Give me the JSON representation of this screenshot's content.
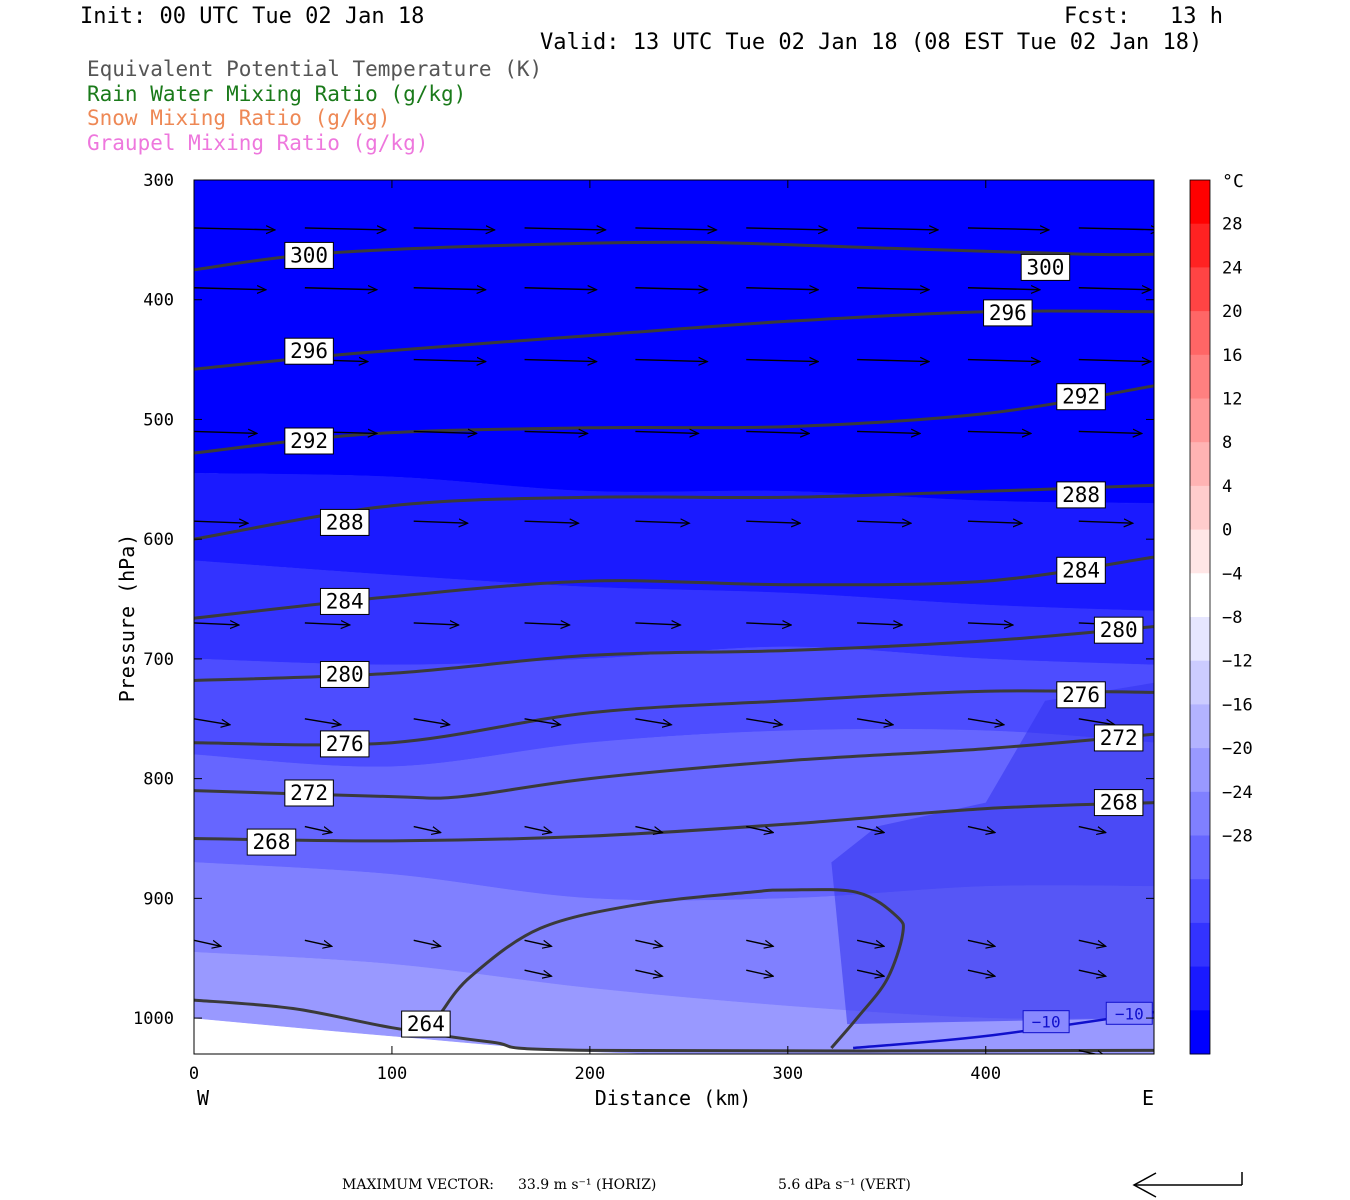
{
  "header": {
    "init": "Init: 00 UTC Tue 02 Jan 18",
    "fcst": "Fcst:   13 h",
    "valid": "Valid: 13 UTC Tue 02 Jan 18 (08 EST Tue 02 Jan 18)"
  },
  "titles": [
    {
      "text": "Equivalent Potential Temperature (K)",
      "color": "#555555"
    },
    {
      "text": "Rain Water Mixing Ratio (g/kg)",
      "color": "#1a7a1a"
    },
    {
      "text": "Snow Mixing Ratio (g/kg)",
      "color": "#ee8855"
    },
    {
      "text": "Graupel Mixing Ratio (g/kg)",
      "color": "#ee77dd"
    }
  ],
  "chart_data": {
    "type": "cross-section",
    "xlabel": "Distance (km)",
    "ylabel": "Pressure (hPa)",
    "xlim": [
      0,
      485
    ],
    "ylim": [
      1030,
      300
    ],
    "x_ticks": [
      0,
      100,
      200,
      300,
      400
    ],
    "y_ticks": [
      300,
      400,
      500,
      600,
      700,
      800,
      900,
      1000
    ],
    "x_end_labels": {
      "left": "W",
      "right": "E"
    },
    "colorbar": {
      "unit": "°C",
      "levels": [
        28,
        24,
        20,
        16,
        12,
        8,
        4,
        0,
        -4,
        -8,
        -12,
        -16,
        -20,
        -24,
        -28
      ],
      "colors": [
        "#ff0000",
        "#ff2222",
        "#ff4444",
        "#ff6666",
        "#ff8080",
        "#ff9999",
        "#ffb3b3",
        "#ffcccc",
        "#ffe6e6",
        "#ffffff",
        "#e6e6ff",
        "#ccccff",
        "#b3b3ff",
        "#9999ff",
        "#8080ff",
        "#6666ff",
        "#4d4dff",
        "#3333ff",
        "#1a1aff",
        "#0000ff"
      ]
    },
    "temperature_fill": [
      {
        "level": -28,
        "color": "#0000ff",
        "top": [
          [
            0,
            300
          ],
          [
            485,
            300
          ]
        ],
        "bottom": [
          [
            0,
            545
          ],
          [
            100,
            548
          ],
          [
            200,
            560
          ],
          [
            300,
            560
          ],
          [
            400,
            568
          ],
          [
            485,
            570
          ]
        ]
      },
      {
        "level": -24,
        "color": "#1a1aff",
        "top": [
          [
            0,
            545
          ],
          [
            100,
            548
          ],
          [
            200,
            560
          ],
          [
            300,
            560
          ],
          [
            400,
            568
          ],
          [
            485,
            570
          ]
        ],
        "bottom": [
          [
            0,
            618
          ],
          [
            100,
            630
          ],
          [
            200,
            640
          ],
          [
            300,
            645
          ],
          [
            400,
            655
          ],
          [
            485,
            660
          ]
        ]
      },
      {
        "level": -20,
        "color": "#3333ff",
        "top": [
          [
            0,
            618
          ],
          [
            100,
            630
          ],
          [
            200,
            640
          ],
          [
            300,
            645
          ],
          [
            400,
            655
          ],
          [
            485,
            660
          ]
        ],
        "bottom": [
          [
            0,
            700
          ],
          [
            100,
            705
          ],
          [
            200,
            700
          ],
          [
            300,
            690
          ],
          [
            400,
            700
          ],
          [
            485,
            705
          ]
        ]
      },
      {
        "level": -16,
        "color": "#4d4dff",
        "top": [
          [
            0,
            700
          ],
          [
            100,
            705
          ],
          [
            200,
            700
          ],
          [
            300,
            690
          ],
          [
            400,
            700
          ],
          [
            485,
            705
          ]
        ],
        "bottom": [
          [
            0,
            780
          ],
          [
            100,
            790
          ],
          [
            200,
            770
          ],
          [
            300,
            760
          ],
          [
            400,
            760
          ],
          [
            485,
            770
          ]
        ]
      },
      {
        "level": -12,
        "color": "#6666ff",
        "top": [
          [
            0,
            780
          ],
          [
            100,
            790
          ],
          [
            200,
            770
          ],
          [
            300,
            760
          ],
          [
            400,
            760
          ],
          [
            485,
            770
          ]
        ],
        "bottom": [
          [
            0,
            870
          ],
          [
            100,
            880
          ],
          [
            200,
            900
          ],
          [
            300,
            900
          ],
          [
            400,
            890
          ],
          [
            485,
            890
          ]
        ]
      },
      {
        "level": -8,
        "color": "#8080ff",
        "top": [
          [
            0,
            870
          ],
          [
            100,
            880
          ],
          [
            200,
            900
          ],
          [
            300,
            900
          ],
          [
            400,
            890
          ],
          [
            485,
            890
          ]
        ],
        "bottom": [
          [
            0,
            945
          ],
          [
            100,
            955
          ],
          [
            200,
            975
          ],
          [
            300,
            990
          ],
          [
            400,
            1000
          ],
          [
            485,
            1000
          ]
        ]
      },
      {
        "level": -4,
        "color": "#9999ff",
        "top": [
          [
            0,
            945
          ],
          [
            100,
            955
          ],
          [
            200,
            975
          ],
          [
            300,
            990
          ],
          [
            400,
            1000
          ],
          [
            485,
            1000
          ]
        ],
        "bottom": [
          [
            0,
            1000
          ],
          [
            100,
            1015
          ],
          [
            200,
            1028
          ],
          [
            300,
            1030
          ],
          [
            400,
            1030
          ],
          [
            485,
            1030
          ]
        ]
      }
    ],
    "cold_region": {
      "color": "#3333ee",
      "points": [
        [
          430,
          735
        ],
        [
          485,
          720
        ],
        [
          485,
          1000
        ],
        [
          330,
          1005
        ],
        [
          322,
          870
        ],
        [
          345,
          840
        ],
        [
          400,
          820
        ]
      ]
    },
    "theta_e_contours": [
      {
        "value": 300,
        "points": [
          [
            0,
            375
          ],
          [
            60,
            362
          ],
          [
            150,
            355
          ],
          [
            250,
            352
          ],
          [
            350,
            357
          ],
          [
            450,
            362
          ],
          [
            485,
            362
          ]
        ],
        "labels": [
          [
            56,
            363
          ],
          [
            428,
            373
          ]
        ]
      },
      {
        "value": 296,
        "points": [
          [
            0,
            458
          ],
          [
            80,
            445
          ],
          [
            200,
            430
          ],
          [
            300,
            418
          ],
          [
            400,
            410
          ],
          [
            485,
            410
          ]
        ],
        "labels": [
          [
            56,
            443
          ],
          [
            409,
            411
          ]
        ]
      },
      {
        "value": 292,
        "points": [
          [
            0,
            528
          ],
          [
            90,
            512
          ],
          [
            200,
            507
          ],
          [
            300,
            506
          ],
          [
            400,
            495
          ],
          [
            485,
            472
          ]
        ],
        "labels": [
          [
            56,
            518
          ],
          [
            446,
            481
          ]
        ]
      },
      {
        "value": 288,
        "points": [
          [
            0,
            600
          ],
          [
            100,
            572
          ],
          [
            200,
            565
          ],
          [
            300,
            565
          ],
          [
            400,
            560
          ],
          [
            485,
            555
          ]
        ],
        "labels": [
          [
            74,
            586
          ],
          [
            446,
            563
          ]
        ]
      },
      {
        "value": 284,
        "points": [
          [
            0,
            666
          ],
          [
            100,
            648
          ],
          [
            200,
            635
          ],
          [
            300,
            638
          ],
          [
            400,
            635
          ],
          [
            485,
            615
          ]
        ],
        "labels": [
          [
            74,
            652
          ],
          [
            446,
            626
          ]
        ]
      },
      {
        "value": 280,
        "points": [
          [
            0,
            718
          ],
          [
            100,
            712
          ],
          [
            200,
            697
          ],
          [
            300,
            693
          ],
          [
            400,
            685
          ],
          [
            485,
            673
          ]
        ],
        "labels": [
          [
            74,
            713
          ],
          [
            465,
            676
          ]
        ]
      },
      {
        "value": 276,
        "points": [
          [
            0,
            770
          ],
          [
            100,
            770
          ],
          [
            200,
            745
          ],
          [
            300,
            735
          ],
          [
            400,
            727
          ],
          [
            485,
            728
          ]
        ],
        "labels": [
          [
            74,
            771
          ],
          [
            446,
            730
          ]
        ]
      },
      {
        "value": 272,
        "points": [
          [
            0,
            810
          ],
          [
            100,
            815
          ],
          [
            135,
            815
          ],
          [
            200,
            800
          ],
          [
            300,
            785
          ],
          [
            400,
            775
          ],
          [
            485,
            763
          ]
        ],
        "labels": [
          [
            56,
            812
          ],
          [
            465,
            766
          ]
        ]
      },
      {
        "value": 268,
        "points": [
          [
            0,
            850
          ],
          [
            100,
            852
          ],
          [
            200,
            848
          ],
          [
            300,
            838
          ],
          [
            400,
            825
          ],
          [
            485,
            820
          ]
        ],
        "labels": [
          [
            37,
            853
          ],
          [
            465,
            820
          ]
        ]
      },
      {
        "value": 264,
        "points": [
          [
            0,
            985
          ],
          [
            50,
            992
          ],
          [
            100,
            1008
          ],
          [
            150,
            1020
          ],
          [
            200,
            1027
          ],
          [
            485,
            1027
          ]
        ],
        "labels": [
          [
            115,
            1005
          ]
        ]
      }
    ],
    "minus10_line": {
      "label": "−10",
      "points": [
        [
          333,
          1025
        ],
        [
          400,
          1015
        ],
        [
          485,
          995
        ]
      ],
      "labels": [
        [
          430,
          1003
        ],
        [
          472,
          996
        ]
      ]
    },
    "closed_contour": {
      "points": [
        [
          125,
          995
        ],
        [
          140,
          965
        ],
        [
          175,
          925
        ],
        [
          225,
          905
        ],
        [
          280,
          895
        ],
        [
          300,
          893
        ],
        [
          335,
          895
        ],
        [
          355,
          915
        ],
        [
          358,
          930
        ],
        [
          350,
          968
        ],
        [
          335,
          1000
        ],
        [
          322,
          1025
        ]
      ]
    },
    "wind_vectors": {
      "pressures": [
        340,
        390,
        450,
        510,
        585,
        670,
        750,
        840,
        935,
        960,
        1027
      ],
      "x_positions": [
        0,
        56,
        111,
        167,
        223,
        279,
        335,
        391,
        447
      ],
      "u": [
        [
          9,
          9,
          9,
          9,
          9,
          9,
          9,
          9,
          9
        ],
        [
          8,
          8,
          8,
          8,
          8,
          8,
          8,
          8,
          8
        ],
        [
          0,
          7,
          8,
          8,
          8,
          8,
          8,
          8,
          8
        ],
        [
          7,
          8,
          7,
          7,
          7,
          7,
          7,
          7,
          7
        ],
        [
          6,
          0,
          6,
          6,
          6,
          6,
          6,
          6,
          6
        ],
        [
          5,
          5,
          5,
          5,
          5,
          5,
          5,
          5,
          5
        ],
        [
          4,
          4,
          4,
          4,
          4,
          4,
          4,
          4,
          4
        ],
        [
          0,
          3,
          3,
          3,
          3,
          3,
          3,
          3,
          3
        ],
        [
          3,
          3,
          3,
          3,
          3,
          3,
          3,
          3,
          3
        ],
        [
          0,
          0,
          0,
          3,
          3,
          3,
          3,
          3,
          3
        ],
        [
          0,
          0,
          0,
          0,
          0,
          0,
          0,
          0,
          3
        ]
      ]
    },
    "max_vector": {
      "prefix": "MAXIMUM VECTOR:",
      "horiz": "33.9 m s⁻¹ (HORIZ)",
      "vert": "5.6 dPa s⁻¹ (VERT)"
    }
  }
}
